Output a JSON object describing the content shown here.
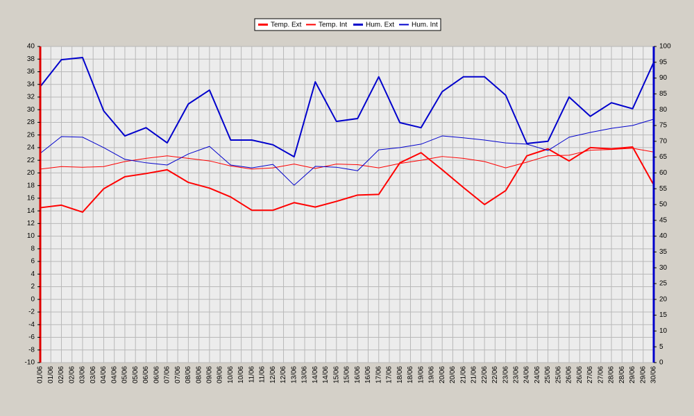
{
  "chart_data": {
    "type": "line",
    "x_labels": [
      "01/06",
      "01/06",
      "02/06",
      "02/06",
      "03/06",
      "03/06",
      "04/06",
      "04/06",
      "05/06",
      "05/06",
      "06/06",
      "06/06",
      "07/06",
      "07/06",
      "08/06",
      "08/06",
      "09/06",
      "09/06",
      "10/06",
      "10/06",
      "11/06",
      "11/06",
      "12/06",
      "12/06",
      "13/06",
      "13/06",
      "14/06",
      "14/06",
      "15/06",
      "15/06",
      "16/06",
      "16/06",
      "17/06",
      "17/06",
      "18/06",
      "18/06",
      "19/06",
      "19/06",
      "20/06",
      "20/06",
      "21/06",
      "21/06",
      "22/06",
      "22/06",
      "23/06",
      "23/06",
      "24/06",
      "24/06",
      "25/06",
      "25/06",
      "26/06",
      "26/06",
      "27/06",
      "27/06",
      "28/06",
      "28/06",
      "29/06",
      "29/06",
      "30/06"
    ],
    "ylim": [
      -10,
      40
    ],
    "yticks": [
      -10,
      -8,
      -6,
      -4,
      -2,
      0,
      2,
      4,
      6,
      8,
      10,
      12,
      14,
      16,
      18,
      20,
      22,
      24,
      26,
      28,
      30,
      32,
      34,
      36,
      38,
      40
    ],
    "y2lim": [
      0,
      100
    ],
    "y2ticks": [
      0,
      5,
      10,
      15,
      20,
      25,
      30,
      35,
      40,
      45,
      50,
      55,
      60,
      65,
      70,
      75,
      80,
      85,
      90,
      95,
      100
    ],
    "grid": true,
    "legend": "top",
    "series": [
      {
        "name": "Temp. Ext",
        "color": "#ff0000",
        "width": 2,
        "values": [
          14.5,
          14.9,
          13.8,
          17.5,
          19.4,
          19.9,
          20.5,
          18.5,
          17.6,
          16.2,
          14.1,
          14.1,
          15.3,
          14.6,
          15.5,
          16.5,
          16.6,
          21.6,
          23.2,
          20.5,
          17.7,
          15.0,
          17.2,
          22.7,
          23.8,
          21.9,
          24.0,
          23.8,
          24.1,
          18.1
        ]
      },
      {
        "name": "Temp. Int",
        "color": "#ff0000",
        "width": 1,
        "values": [
          20.6,
          21.0,
          20.9,
          21.0,
          21.8,
          22.3,
          22.7,
          22.3,
          21.9,
          21.1,
          20.6,
          20.8,
          21.4,
          20.7,
          21.4,
          21.3,
          20.8,
          21.5,
          22.0,
          22.6,
          22.3,
          21.8,
          20.8,
          21.7,
          22.7,
          22.8,
          23.6,
          23.7,
          23.9,
          23.3
        ]
      },
      {
        "name": "Hum. Ext",
        "color": "#0000cc",
        "width": 2,
        "axis": "y2",
        "values": [
          87.3,
          95.8,
          96.5,
          79.6,
          71.7,
          74.3,
          69.5,
          81.8,
          86.2,
          70.4,
          70.4,
          68.9,
          65.1,
          88.8,
          76.3,
          77.2,
          90.4,
          75.9,
          74.3,
          85.7,
          90.4,
          90.4,
          84.6,
          69.3,
          70.0,
          84.0,
          77.9,
          82.2,
          80.3,
          95.0
        ]
      },
      {
        "name": "Hum. Int",
        "color": "#0000cc",
        "width": 1,
        "axis": "y2",
        "values": [
          66.2,
          71.5,
          71.3,
          68.0,
          64.3,
          63.2,
          62.5,
          66.0,
          68.4,
          62.5,
          61.6,
          62.7,
          56.1,
          62.1,
          61.8,
          60.7,
          67.3,
          68.0,
          69.1,
          71.7,
          71.1,
          70.4,
          69.5,
          69.1,
          67.1,
          71.3,
          72.8,
          74.1,
          75.0,
          77.0
        ]
      }
    ]
  }
}
